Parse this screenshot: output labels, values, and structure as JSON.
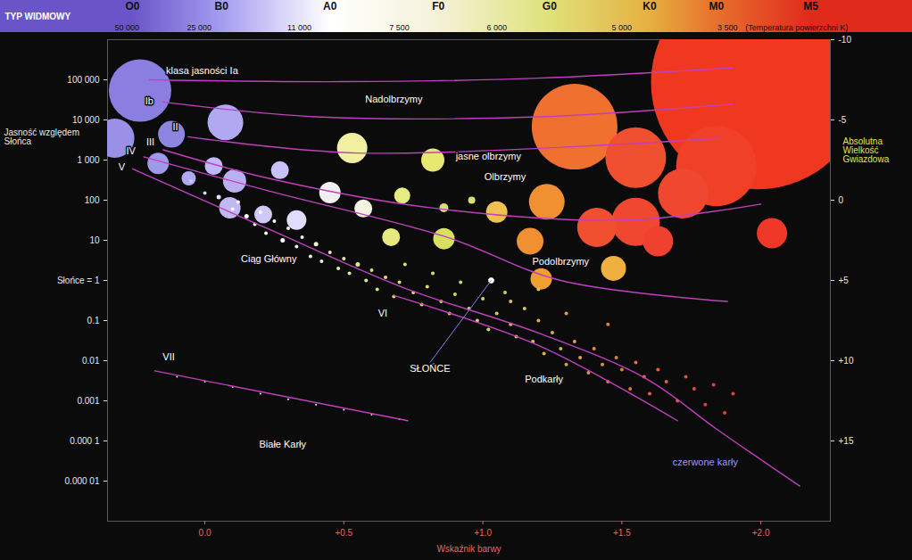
{
  "chart_data": {
    "type": "scatter",
    "top_band": {
      "title": "TYP WIDMOWY",
      "spectral_types": [
        {
          "value": -0.26,
          "label": "O0"
        },
        {
          "value": 0.06,
          "label": "B0"
        },
        {
          "value": 0.45,
          "label": "A0"
        },
        {
          "value": 0.84,
          "label": "F0"
        },
        {
          "value": 1.24,
          "label": "G0"
        },
        {
          "value": 1.6,
          "label": "K0"
        },
        {
          "value": 1.84,
          "label": "M0"
        },
        {
          "value": 2.18,
          "label": "M5"
        }
      ],
      "colors": [
        "#6a55c8",
        "#a49cf0",
        "#ffffff",
        "#f4f2d8",
        "#dfe27a",
        "#e6b040",
        "#e8702c",
        "#e02a1c"
      ],
      "temperatures": [
        {
          "value": -0.28,
          "label": "50 000"
        },
        {
          "value": -0.02,
          "label": "25 000"
        },
        {
          "value": 0.34,
          "label": "11 000"
        },
        {
          "value": 0.7,
          "label": "7 500"
        },
        {
          "value": 1.05,
          "label": "6 000"
        },
        {
          "value": 1.5,
          "label": "5 000"
        },
        {
          "value": 1.88,
          "label": "3 500"
        }
      ],
      "temperature_label": "(Temperatura powierzchni K)"
    },
    "xlabel": "Wskaźnik barwy",
    "ylabel": "Jasność względem Słońca",
    "y2label": "Absolutna Wielkość Gwiazdowa",
    "log": "y",
    "xlim": [
      -0.35,
      2.25
    ],
    "xticks": [
      {
        "value": 0,
        "label": "0.0"
      },
      {
        "value": 0.5,
        "label": "+0.5"
      },
      {
        "value": 1,
        "label": "+1.0"
      },
      {
        "value": 1.5,
        "label": "+1.5"
      },
      {
        "value": 2,
        "label": "+2.0"
      }
    ],
    "ylim": [
      1e-06,
      1000000
    ],
    "yticks": [
      {
        "value": 100000,
        "label": "100 000"
      },
      {
        "value": 10000,
        "label": "10 000"
      },
      {
        "value": 1000,
        "label": "1 000"
      },
      100,
      10,
      {
        "value": 1,
        "label": "Słońce = 1"
      },
      0.1,
      0.01,
      0.001,
      {
        "value": 0.0001,
        "label": "0.000 1"
      },
      {
        "value": 1e-05,
        "label": "0.000 01"
      }
    ],
    "y2lim": [
      -10,
      20
    ],
    "y2ticks": [
      -10,
      -5,
      0,
      {
        "value": 5,
        "label": "+5"
      },
      {
        "value": 10,
        "label": "+10"
      },
      {
        "value": 15,
        "label": "+15"
      }
    ],
    "stars": [
      {
        "x": 1.99,
        "y": 87000,
        "size": 120,
        "color": "#f03820"
      },
      {
        "x": -0.233,
        "y": 54000,
        "size": 35,
        "color": "#8a7ee0"
      },
      {
        "x": -0.324,
        "y": 3500,
        "size": 22,
        "color": "#9a90e8"
      },
      {
        "x": -0.12,
        "y": 4400,
        "size": 15,
        "color": "#8c86e0"
      },
      {
        "x": 0.074,
        "y": 8700,
        "size": 20,
        "color": "#b0a8f0"
      },
      {
        "x": -0.168,
        "y": 830,
        "size": 12,
        "color": "#a098e8"
      },
      {
        "x": -0.058,
        "y": 350,
        "size": 8,
        "color": "#b0a8f0"
      },
      {
        "x": 0.032,
        "y": 710,
        "size": 10,
        "color": "#c0b8f8"
      },
      {
        "x": 0.107,
        "y": 300,
        "size": 13,
        "color": "#b8b0f0"
      },
      {
        "x": 0.27,
        "y": 560,
        "size": 10,
        "color": "#c8c0f8"
      },
      {
        "x": 0.09,
        "y": 65,
        "size": 12,
        "color": "#c0b8f0"
      },
      {
        "x": 0.21,
        "y": 44,
        "size": 10,
        "color": "#d0c8f8"
      },
      {
        "x": 0.33,
        "y": 32,
        "size": 11,
        "color": "#e0dcff"
      },
      {
        "x": 0.45,
        "y": 155,
        "size": 12,
        "color": "#f0f0f0"
      },
      {
        "x": 0.57,
        "y": 62,
        "size": 10,
        "color": "#f4f4e0"
      },
      {
        "x": 0.53,
        "y": 2000,
        "size": 17,
        "color": "#f0f0a0"
      },
      {
        "x": 0.82,
        "y": 1000,
        "size": 13,
        "color": "#e8e870"
      },
      {
        "x": 0.71,
        "y": 130,
        "size": 9,
        "color": "#e8ec80"
      },
      {
        "x": 0.86,
        "y": 65,
        "size": 5,
        "color": "#d8e070"
      },
      {
        "x": 0.96,
        "y": 100,
        "size": 4,
        "color": "#d8e070"
      },
      {
        "x": 1.05,
        "y": 51,
        "size": 12,
        "color": "#f0c050"
      },
      {
        "x": 1.23,
        "y": 91,
        "size": 20,
        "color": "#f09030"
      },
      {
        "x": 1.33,
        "y": 6800,
        "size": 48,
        "color": "#f07030"
      },
      {
        "x": 1.55,
        "y": 1150,
        "size": 34,
        "color": "#f05030"
      },
      {
        "x": 1.84,
        "y": 710,
        "size": 45,
        "color": "#f04028"
      },
      {
        "x": 1.72,
        "y": 147,
        "size": 28,
        "color": "#f04830"
      },
      {
        "x": 1.41,
        "y": 21,
        "size": 22,
        "color": "#f05030"
      },
      {
        "x": 1.55,
        "y": 29,
        "size": 27,
        "color": "#f04830"
      },
      {
        "x": 1.63,
        "y": 9.5,
        "size": 17,
        "color": "#f04030"
      },
      {
        "x": 1.17,
        "y": 9.5,
        "size": 15,
        "color": "#f09030"
      },
      {
        "x": 1.21,
        "y": 1.1,
        "size": 12,
        "color": "#f0a030"
      },
      {
        "x": 1.47,
        "y": 2,
        "size": 14,
        "color": "#f0b040"
      },
      {
        "x": 0.86,
        "y": 11,
        "size": 12,
        "color": "#d8e060"
      },
      {
        "x": 0.67,
        "y": 12,
        "size": 10,
        "color": "#e8e880"
      },
      {
        "x": 2.04,
        "y": 15,
        "size": 17,
        "color": "#f03828"
      },
      {
        "x": -0.05,
        "y": 300,
        "size": 2,
        "color": "#c8d0ff"
      },
      {
        "x": 0.0,
        "y": 150,
        "size": 2,
        "color": "#c8d0ff"
      },
      {
        "x": 0.05,
        "y": 120,
        "size": 2.5,
        "color": "#dde0ff"
      },
      {
        "x": 0.1,
        "y": 60,
        "size": 2,
        "color": "#ffffff"
      },
      {
        "x": 0.12,
        "y": 90,
        "size": 2,
        "color": "#ffffff"
      },
      {
        "x": 0.15,
        "y": 40,
        "size": 2.5,
        "color": "#ffffff"
      },
      {
        "x": 0.18,
        "y": 25,
        "size": 2,
        "color": "#ffffff"
      },
      {
        "x": 0.2,
        "y": 50,
        "size": 2,
        "color": "#ffffff"
      },
      {
        "x": 0.22,
        "y": 15,
        "size": 2,
        "color": "#ffffff"
      },
      {
        "x": 0.25,
        "y": 30,
        "size": 2,
        "color": "#ffffff"
      },
      {
        "x": 0.28,
        "y": 10,
        "size": 2.5,
        "color": "#ffffff"
      },
      {
        "x": 0.3,
        "y": 20,
        "size": 2,
        "color": "#f0f0e0"
      },
      {
        "x": 0.33,
        "y": 7,
        "size": 2,
        "color": "#f0f0e0"
      },
      {
        "x": 0.35,
        "y": 12,
        "size": 2,
        "color": "#f0f0e0"
      },
      {
        "x": 0.38,
        "y": 4,
        "size": 2,
        "color": "#f0f0d0"
      },
      {
        "x": 0.4,
        "y": 8,
        "size": 2.5,
        "color": "#f0f0d0"
      },
      {
        "x": 0.42,
        "y": 3,
        "size": 2,
        "color": "#f0f0d0"
      },
      {
        "x": 0.45,
        "y": 5,
        "size": 2,
        "color": "#e8ecb0"
      },
      {
        "x": 0.48,
        "y": 2,
        "size": 2,
        "color": "#e8ecb0"
      },
      {
        "x": 0.5,
        "y": 3.5,
        "size": 2,
        "color": "#e8ecb0"
      },
      {
        "x": 0.52,
        "y": 1.5,
        "size": 2,
        "color": "#e0e890"
      },
      {
        "x": 0.55,
        "y": 2.5,
        "size": 2.5,
        "color": "#e0e890"
      },
      {
        "x": 0.58,
        "y": 1,
        "size": 2,
        "color": "#e0e890"
      },
      {
        "x": 0.6,
        "y": 1.8,
        "size": 2,
        "color": "#d8e070"
      },
      {
        "x": 0.62,
        "y": 0.6,
        "size": 2,
        "color": "#d8e070"
      },
      {
        "x": 0.65,
        "y": 1.2,
        "size": 2,
        "color": "#d8e070"
      },
      {
        "x": 0.68,
        "y": 0.4,
        "size": 2,
        "color": "#d8e070"
      },
      {
        "x": 0.7,
        "y": 0.9,
        "size": 2,
        "color": "#d8e070"
      },
      {
        "x": 0.72,
        "y": 2.5,
        "size": 2,
        "color": "#d8e070"
      },
      {
        "x": 0.75,
        "y": 0.5,
        "size": 2,
        "color": "#d8e070"
      },
      {
        "x": 0.78,
        "y": 0.25,
        "size": 2,
        "color": "#d8e070"
      },
      {
        "x": 0.8,
        "y": 0.7,
        "size": 2,
        "color": "#d8e070"
      },
      {
        "x": 0.82,
        "y": 1.5,
        "size": 2,
        "color": "#d8e070"
      },
      {
        "x": 0.85,
        "y": 0.3,
        "size": 2,
        "color": "#d0d860"
      },
      {
        "x": 0.88,
        "y": 0.15,
        "size": 2,
        "color": "#d0d860"
      },
      {
        "x": 0.9,
        "y": 0.45,
        "size": 2,
        "color": "#d0d860"
      },
      {
        "x": 0.92,
        "y": 0.9,
        "size": 2,
        "color": "#d0d860"
      },
      {
        "x": 0.95,
        "y": 0.2,
        "size": 2,
        "color": "#d0d860"
      },
      {
        "x": 0.98,
        "y": 0.1,
        "size": 2,
        "color": "#d0d860"
      },
      {
        "x": 1.0,
        "y": 0.35,
        "size": 2,
        "color": "#d0d860"
      },
      {
        "x": 1.02,
        "y": 0.06,
        "size": 2,
        "color": "#d0d860"
      },
      {
        "x": 1.05,
        "y": 0.15,
        "size": 2,
        "color": "#d8c850"
      },
      {
        "x": 1.08,
        "y": 0.5,
        "size": 2,
        "color": "#d8c850"
      },
      {
        "x": 1.1,
        "y": 0.08,
        "size": 2,
        "color": "#d8c850"
      },
      {
        "x": 1.12,
        "y": 0.04,
        "size": 2,
        "color": "#d8c850"
      },
      {
        "x": 1.15,
        "y": 0.2,
        "size": 2,
        "color": "#d8c850"
      },
      {
        "x": 1.18,
        "y": 0.03,
        "size": 2,
        "color": "#d8c850"
      },
      {
        "x": 1.2,
        "y": 0.1,
        "size": 2,
        "color": "#e0b040"
      },
      {
        "x": 1.22,
        "y": 0.015,
        "size": 2,
        "color": "#e0b040"
      },
      {
        "x": 1.25,
        "y": 0.05,
        "size": 2,
        "color": "#e0b040"
      },
      {
        "x": 1.28,
        "y": 0.02,
        "size": 2,
        "color": "#e0b040"
      },
      {
        "x": 1.3,
        "y": 0.008,
        "size": 2,
        "color": "#e0a040"
      },
      {
        "x": 1.33,
        "y": 0.03,
        "size": 2,
        "color": "#e0a040"
      },
      {
        "x": 1.35,
        "y": 0.012,
        "size": 2,
        "color": "#e0a040"
      },
      {
        "x": 1.38,
        "y": 0.005,
        "size": 2,
        "color": "#e09040"
      },
      {
        "x": 1.4,
        "y": 0.02,
        "size": 2,
        "color": "#e09040"
      },
      {
        "x": 1.43,
        "y": 0.008,
        "size": 2,
        "color": "#e09040"
      },
      {
        "x": 1.45,
        "y": 0.003,
        "size": 2,
        "color": "#e08040"
      },
      {
        "x": 1.48,
        "y": 0.012,
        "size": 2,
        "color": "#e08040"
      },
      {
        "x": 1.5,
        "y": 0.006,
        "size": 2,
        "color": "#e08040"
      },
      {
        "x": 1.53,
        "y": 0.002,
        "size": 2,
        "color": "#e07040"
      },
      {
        "x": 1.55,
        "y": 0.009,
        "size": 2,
        "color": "#e07040"
      },
      {
        "x": 1.58,
        "y": 0.004,
        "size": 2,
        "color": "#e07040"
      },
      {
        "x": 1.6,
        "y": 0.0015,
        "size": 2,
        "color": "#e06040"
      },
      {
        "x": 1.63,
        "y": 0.006,
        "size": 2,
        "color": "#e06040"
      },
      {
        "x": 1.66,
        "y": 0.003,
        "size": 2,
        "color": "#e06040"
      },
      {
        "x": 1.7,
        "y": 0.001,
        "size": 2,
        "color": "#e05040"
      },
      {
        "x": 1.73,
        "y": 0.004,
        "size": 2,
        "color": "#e05040"
      },
      {
        "x": 1.76,
        "y": 0.002,
        "size": 2,
        "color": "#e05040"
      },
      {
        "x": 1.8,
        "y": 0.0008,
        "size": 2,
        "color": "#e04040"
      },
      {
        "x": 1.83,
        "y": 0.0025,
        "size": 2,
        "color": "#e04040"
      },
      {
        "x": 1.87,
        "y": 0.0005,
        "size": 2,
        "color": "#e04040"
      },
      {
        "x": 1.9,
        "y": 0.0015,
        "size": 2,
        "color": "#e04040"
      },
      {
        "x": 1.1,
        "y": 0.3,
        "size": 2,
        "color": "#d8c850"
      },
      {
        "x": 1.3,
        "y": 0.15,
        "size": 2,
        "color": "#e0a040"
      },
      {
        "x": 1.45,
        "y": 0.08,
        "size": 2,
        "color": "#e08040"
      },
      {
        "x": 1.2,
        "y": 0.6,
        "size": 2,
        "color": "#d8c850"
      },
      {
        "x": -0.1,
        "y": 0.004,
        "size": 1,
        "color": "#ffffff"
      },
      {
        "x": 0.0,
        "y": 0.003,
        "size": 1,
        "color": "#ffffff"
      },
      {
        "x": 0.1,
        "y": 0.0022,
        "size": 1,
        "color": "#ffffff"
      },
      {
        "x": 0.2,
        "y": 0.0015,
        "size": 1,
        "color": "#ffffff"
      },
      {
        "x": 0.3,
        "y": 0.0011,
        "size": 1,
        "color": "#ffffff"
      },
      {
        "x": 0.4,
        "y": 0.0008,
        "size": 1,
        "color": "#ffffff"
      },
      {
        "x": 0.5,
        "y": 0.0006,
        "size": 1,
        "color": "#ffffff"
      },
      {
        "x": 0.6,
        "y": 0.00045,
        "size": 1,
        "color": "#ffffff"
      },
      {
        "x": 0.7,
        "y": 0.00035,
        "size": 1,
        "color": "#ffffff"
      }
    ],
    "sun": {
      "x": 1.03,
      "y": 1,
      "size": 3,
      "color": "#ffffff"
    },
    "curves": [
      {
        "x": [
          -0.2,
          0.5,
          1.2,
          1.9
        ],
        "y": [
          100000,
          90000,
          110000,
          200000
        ],
        "color": "#c040c0"
      },
      {
        "x": [
          -0.15,
          0.4,
          1.2,
          1.9
        ],
        "y": [
          28000,
          12000,
          12000,
          25000
        ],
        "color": "#c040c0"
      },
      {
        "x": [
          -0.06,
          0.55,
          1.85
        ],
        "y": [
          3800,
          1500,
          3500
        ],
        "color": "#c040c0"
      },
      {
        "x": [
          -0.15,
          0.23,
          0.81,
          1.52,
          2.0
        ],
        "y": [
          1800,
          350,
          65,
          32,
          80
        ],
        "color": "#c040c0"
      },
      {
        "x": [
          -0.22,
          0.23,
          0.87,
          1.28,
          1.88
        ],
        "y": [
          1200,
          170,
          12,
          1,
          0.3
        ],
        "color": "#c040c0"
      },
      {
        "x": [
          -0.26,
          0.23,
          0.71,
          1.2,
          1.59,
          1.84,
          2.14
        ],
        "y": [
          600,
          19,
          0.68,
          0.049,
          0.0035,
          0.0002,
          7.5e-06
        ],
        "color": "#c040c0"
      },
      {
        "x": [
          0.68,
          1.2,
          1.7
        ],
        "y": [
          0.42,
          0.024,
          0.00032
        ],
        "color": "#c040c0"
      },
      {
        "x": [
          -0.18,
          0.73
        ],
        "y": [
          0.0056,
          0.00032
        ],
        "color": "#c040c0"
      }
    ],
    "annotations": [
      {
        "text": "klasa jasności Ia",
        "x": -0.01,
        "y": 170000,
        "color": "#ffffff"
      },
      {
        "text": "Ib",
        "x": -0.2,
        "y": 30000,
        "color": "#ffffff"
      },
      {
        "text": "II",
        "x": -0.106,
        "y": 6500,
        "color": "#ffffff"
      },
      {
        "text": "III",
        "x": -0.196,
        "y": 2800,
        "color": "#ffffff"
      },
      {
        "text": "IV",
        "x": -0.266,
        "y": 1700,
        "color": "#ffffff"
      },
      {
        "text": "V",
        "x": -0.299,
        "y": 660,
        "color": "#ffffff"
      },
      {
        "text": "VI",
        "x": 0.64,
        "y": 0.15,
        "color": "#ffffff"
      },
      {
        "text": "VII",
        "x": -0.13,
        "y": 0.012,
        "color": "#ffffff"
      },
      {
        "text": "Nadolbrzymy",
        "x": 0.68,
        "y": 33000,
        "color": "#ffffff"
      },
      {
        "text": "jasne olbrzymy",
        "x": 1.02,
        "y": 1200,
        "color": "#ffffff"
      },
      {
        "text": "Olbrzymy",
        "x": 1.08,
        "y": 380,
        "color": "#ffffff"
      },
      {
        "text": "Ciąg Główny",
        "x": 0.23,
        "y": 3.5,
        "color": "#ffffff"
      },
      {
        "text": "Podolbrzymy",
        "x": 1.28,
        "y": 3.0,
        "color": "#ffffff"
      },
      {
        "text": "SŁOŃCE",
        "x": 0.81,
        "y": 0.009,
        "color": "#ffffff",
        "line_to": [
          1.03,
          1
        ]
      },
      {
        "text": "Podkarły",
        "x": 1.22,
        "y": 0.0035,
        "color": "#ffffff"
      },
      {
        "text": "Białe Karły",
        "x": 0.28,
        "y": 8e-05,
        "color": "#ffffff"
      },
      {
        "text": "czerwone karły",
        "x": 1.8,
        "y": 3e-05,
        "color": "#9a9af0"
      }
    ]
  }
}
